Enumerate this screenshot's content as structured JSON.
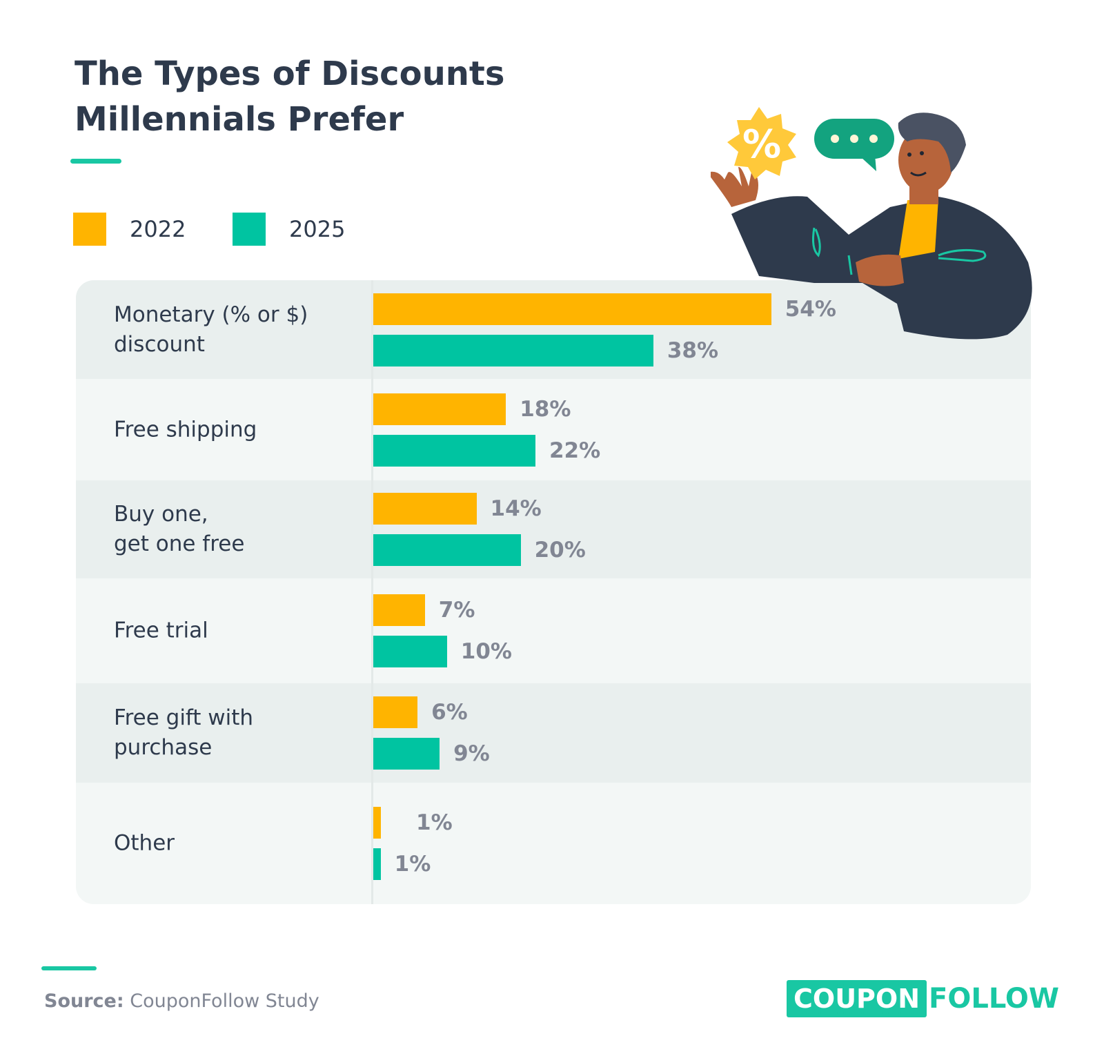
{
  "title": {
    "line1": "The Types of Discounts",
    "line2": "Millennials Prefer"
  },
  "legend": {
    "items": [
      {
        "label": "2022",
        "color": "#ffb400"
      },
      {
        "label": "2025",
        "color": "#00c4a1"
      }
    ]
  },
  "chart_data": {
    "type": "bar",
    "orientation": "horizontal",
    "title": "The Types of Discounts Millennials Prefer",
    "categories": [
      "Monetary (% or $)\ndiscount",
      "Free shipping",
      "Buy one,\nget one free",
      "Free trial",
      "Free gift with\npurchase",
      "Other"
    ],
    "series": [
      {
        "name": "2022",
        "color": "#ffb400",
        "values": [
          54,
          18,
          14,
          7,
          6,
          1
        ],
        "labels": [
          "54%",
          "18%",
          "14%",
          "7%",
          "6%",
          "1%"
        ]
      },
      {
        "name": "2025",
        "color": "#00c4a1",
        "values": [
          38,
          22,
          20,
          10,
          9,
          1
        ],
        "labels": [
          "38%",
          "22%",
          "20%",
          "10%",
          "9%",
          "1%"
        ]
      }
    ],
    "unit": "%",
    "xlim": [
      0,
      100
    ],
    "grid": false,
    "legend_position": "top-left"
  },
  "source": {
    "prefix": "Source:",
    "text": " CouponFollow Study"
  },
  "logo": {
    "part1": "COUPON",
    "part2": "FOLLOW"
  },
  "illustration": {
    "badge_symbol": "%",
    "bubble_dots": "•••"
  }
}
